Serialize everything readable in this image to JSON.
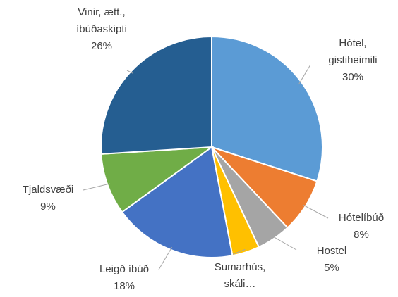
{
  "chart_data": {
    "type": "pie",
    "categories": [
      [
        "Hótel,",
        "gistiheimili"
      ],
      [
        "Hótelíbúð"
      ],
      [
        "Hostel"
      ],
      [
        "Sumarhús,",
        "skáli…"
      ],
      [
        "Leigð íbúð"
      ],
      [
        "Tjaldsvæði"
      ],
      [
        "Vinir, ætt.,",
        "íbúðaskipti"
      ]
    ],
    "values": [
      30,
      8,
      5,
      4,
      18,
      9,
      26
    ],
    "value_labels": [
      "30%",
      "8%",
      "5%",
      null,
      "18%",
      "9%",
      "26%"
    ],
    "colors": [
      "#5b9bd5",
      "#ed7d31",
      "#a5a5a5",
      "#ffc000",
      "#4472c4",
      "#70ad47",
      "#255e91"
    ]
  }
}
